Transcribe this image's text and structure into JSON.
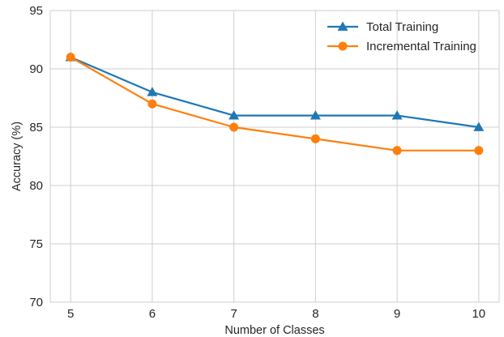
{
  "chart_data": {
    "type": "line",
    "title": "",
    "xlabel": "Number of Classes",
    "ylabel": "Accuracy (%)",
    "x": [
      5,
      6,
      7,
      8,
      9,
      10
    ],
    "xticks": [
      "5",
      "6",
      "7",
      "8",
      "9",
      "10"
    ],
    "yticks": [
      "70",
      "75",
      "80",
      "85",
      "90",
      "95"
    ],
    "xlim": [
      4.75,
      10.25
    ],
    "ylim": [
      70,
      95
    ],
    "grid": true,
    "legend_position": "top-right",
    "series": [
      {
        "name": "Total Training",
        "values": [
          91,
          88,
          86,
          86,
          86,
          85
        ],
        "color": "#1f77b4",
        "marker": "triangle"
      },
      {
        "name": "Incremental Training",
        "values": [
          91,
          87,
          85,
          84,
          83,
          83
        ],
        "color": "#ff7f0e",
        "marker": "circle"
      }
    ]
  }
}
